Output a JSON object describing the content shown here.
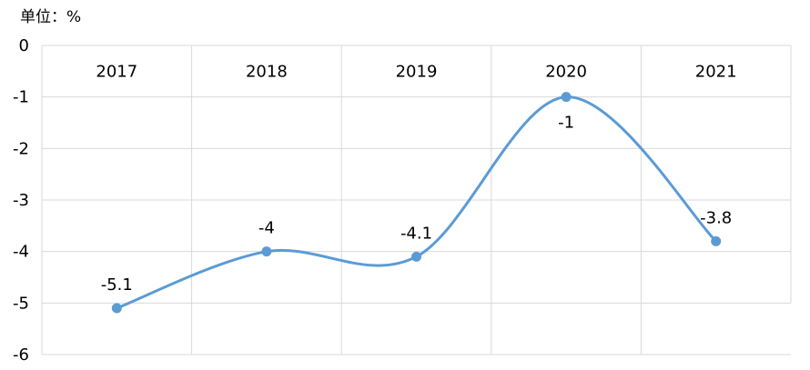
{
  "unit_label": "单位：%",
  "chart_data": {
    "type": "line",
    "categories": [
      "2017",
      "2018",
      "2019",
      "2020",
      "2021"
    ],
    "values": [
      -5.1,
      -4,
      -4.1,
      -1,
      -3.8
    ],
    "data_labels": [
      "-5.1",
      "-4",
      "-4.1",
      "-1",
      "-3.8"
    ],
    "ylim": [
      -6,
      0
    ],
    "yticks": [
      "0",
      "-1",
      "-2",
      "-3",
      "-4",
      "-5",
      "-6"
    ],
    "category_axis_position": "top",
    "smooth": true,
    "grid": true,
    "line_color": "#5b9bd5",
    "grid_color": "#d9d9d9"
  }
}
